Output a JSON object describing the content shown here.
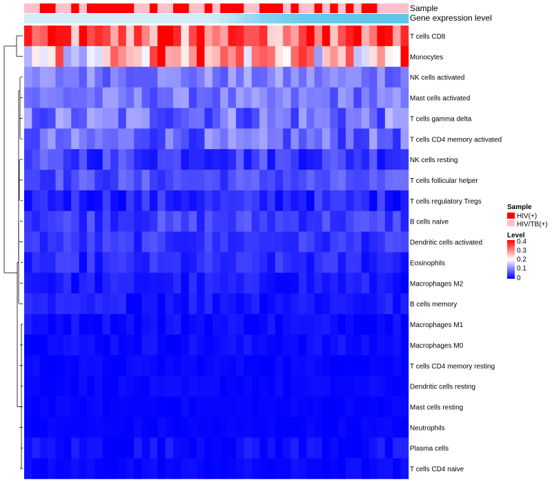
{
  "chart_data": {
    "type": "heatmap",
    "annotation_tracks": [
      {
        "name": "Sample",
        "legend_title": "Sample",
        "categories": [
          "HIV(+)",
          "HIV/TB(+)"
        ],
        "colors": {
          "HIV(+)": "#ff0000",
          "HIV/TB(+)": "#ffc0cb"
        }
      },
      {
        "name": "Gene expression level",
        "colors": {
          "low": "#d3ecf8",
          "high": "#5ec6ea"
        }
      }
    ],
    "columns": 49,
    "sample_groups": [
      1,
      1,
      0,
      0,
      1,
      1,
      0,
      1,
      0,
      0,
      0,
      0,
      0,
      0,
      1,
      1,
      0,
      1,
      1,
      0,
      0,
      1,
      1,
      0,
      1,
      0,
      0,
      0,
      1,
      1,
      0,
      0,
      0,
      1,
      0,
      1,
      1,
      0,
      1,
      0,
      1,
      0,
      1,
      0,
      0,
      1,
      1,
      1,
      1
    ],
    "gene_expression_levels": [
      0,
      0,
      0,
      0,
      0,
      0,
      0,
      0,
      0,
      0,
      0,
      0,
      0,
      0,
      0,
      0,
      0,
      0,
      0,
      0,
      0,
      0,
      0,
      0,
      0.05,
      0.15,
      0.25,
      0.35,
      0.45,
      0.55,
      0.65,
      0.7,
      0.75,
      0.8,
      0.85,
      0.88,
      0.9,
      0.92,
      0.94,
      0.95,
      0.96,
      0.97,
      0.98,
      0.99,
      1,
      1,
      1,
      1,
      1
    ],
    "rows": [
      "T cells CD8",
      "Monocytes",
      "NK cells activated",
      "Mast cells activated",
      "T cells gamma delta",
      "T cells CD4 memory activated",
      "NK cells resting",
      "T cells follicular helper",
      "T cells regulatory  Tregs",
      "B cells naive",
      "Dendritic cells activated",
      "Eosinophils",
      "Macrophages M2",
      "B cells memory",
      "Macrophages M1",
      "Macrophages M0",
      "T cells CD4 memory resting",
      "Dendritic cells resting",
      "Mast cells resting",
      "Neutrophils",
      "Plasma cells",
      "T cells CD4 naive"
    ],
    "row_means": [
      0.3,
      0.24,
      0.1,
      0.09,
      0.09,
      0.08,
      0.05,
      0.06,
      0.03,
      0.05,
      0.04,
      0.03,
      0.02,
      0.02,
      0.01,
      0.01,
      0.005,
      0.005,
      0.003,
      0.003,
      0.01,
      0.005
    ],
    "row_spread": [
      0.1,
      0.12,
      0.04,
      0.04,
      0.06,
      0.05,
      0.04,
      0.03,
      0.03,
      0.03,
      0.025,
      0.025,
      0.02,
      0.02,
      0.015,
      0.012,
      0.008,
      0.008,
      0.006,
      0.006,
      0.02,
      0.01
    ],
    "color_scale": {
      "min": 0,
      "max": 0.4,
      "colors": [
        "#0000ff",
        "#ffffff",
        "#ff0000"
      ],
      "breaks": [
        0,
        0.2,
        0.4
      ]
    },
    "legend": {
      "title": "Level",
      "ticks": [
        "0.4",
        "0.3",
        "0.2",
        "0.1",
        "0"
      ],
      "tick_values": [
        0.4,
        0.3,
        0.2,
        0.1,
        0
      ]
    },
    "dendrogram": "rows",
    "legend_placement": "right"
  }
}
